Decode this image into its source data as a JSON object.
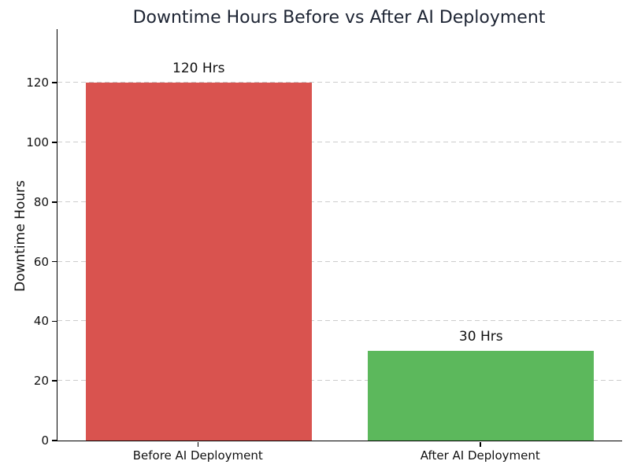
{
  "title": "Downtime Hours Before vs After AI Deployment",
  "chart_data": {
    "type": "bar",
    "title": "Downtime Hours Before vs After AI Deployment",
    "categories": [
      "Before AI Deployment",
      "After AI Deployment"
    ],
    "values": [
      120,
      30
    ],
    "bar_labels": [
      "120 Hrs",
      "30 Hrs"
    ],
    "bar_colors": [
      "#d9534f",
      "#5cb85c"
    ],
    "xlabel": "",
    "ylabel": "Downtime Hours",
    "yticks": [
      0,
      20,
      40,
      60,
      80,
      100,
      120
    ],
    "ylim": [
      0,
      138
    ],
    "bar_width_fraction": 0.8,
    "grid": {
      "axis": "y",
      "style": "dashed",
      "color": "#cccccc"
    },
    "legend": "none",
    "background": "#ffffff",
    "title_color": "#1d2433"
  }
}
